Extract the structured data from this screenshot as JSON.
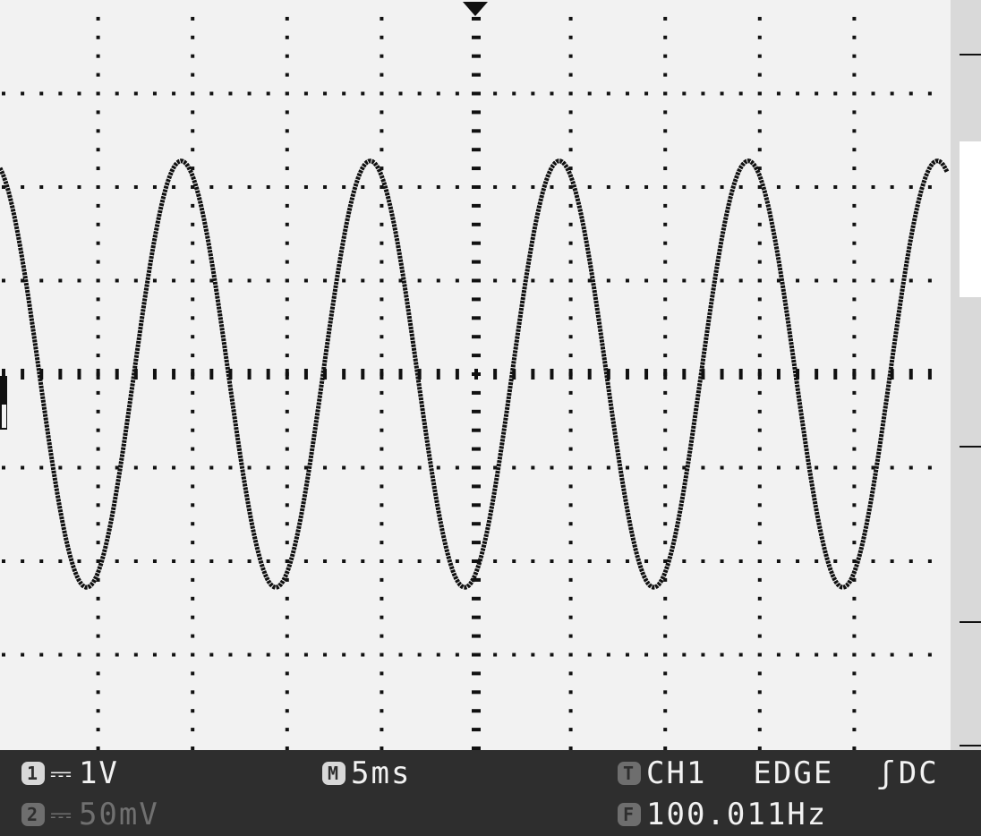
{
  "screen": {
    "grid": {
      "divisions_x": 10,
      "divisions_y": 8
    },
    "trace_color": "#111111",
    "screen_color": "#f2f2f2",
    "status_bar_color": "#2e2e2e",
    "waveform": {
      "type": "sine",
      "cycles_visible": 5,
      "period_ms": 10,
      "amplitude_div": 2.28,
      "offset_div": 0
    }
  },
  "status_bar": {
    "ch1": {
      "badge": "1",
      "coupling_icon": "dc-coupling-icon",
      "scale": "1V"
    },
    "ch2": {
      "badge": "2",
      "coupling_icon": "dc-coupling-icon",
      "scale": "50mV"
    },
    "timebase": {
      "badge": "M",
      "value": "5ms"
    },
    "trigger": {
      "badge": "T",
      "source": "CH1",
      "mode": "EDGE",
      "slope_icon": "rising-edge-icon",
      "coupling": "DC"
    },
    "frequency": {
      "badge": "F",
      "value": "100.011Hz"
    }
  }
}
